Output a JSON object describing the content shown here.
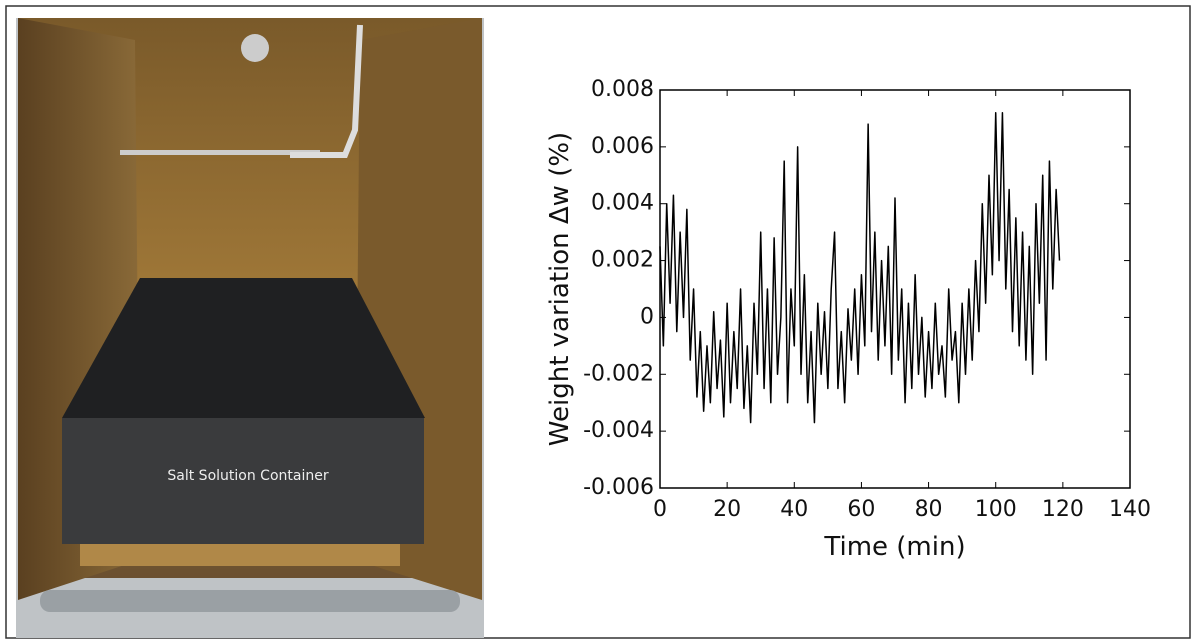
{
  "photo": {
    "caption": "Salt Solution Container"
  },
  "chart_data": {
    "type": "line",
    "xlabel": "Time (min)",
    "ylabel": "Weight variation Δw (%)",
    "xlim": [
      0,
      140
    ],
    "xticks": [
      0,
      20,
      40,
      60,
      80,
      100,
      120,
      140
    ],
    "ylim": [
      -0.006,
      0.008
    ],
    "yticks": [
      -0.006,
      -0.004,
      -0.002,
      0,
      0.002,
      0.004,
      0.006,
      0.008
    ],
    "x": [
      0,
      1,
      2,
      3,
      4,
      5,
      6,
      7,
      8,
      9,
      10,
      11,
      12,
      13,
      14,
      15,
      16,
      17,
      18,
      19,
      20,
      21,
      22,
      23,
      24,
      25,
      26,
      27,
      28,
      29,
      30,
      31,
      32,
      33,
      34,
      35,
      36,
      37,
      38,
      39,
      40,
      41,
      42,
      43,
      44,
      45,
      46,
      47,
      48,
      49,
      50,
      51,
      52,
      53,
      54,
      55,
      56,
      57,
      58,
      59,
      60,
      61,
      62,
      63,
      64,
      65,
      66,
      67,
      68,
      69,
      70,
      71,
      72,
      73,
      74,
      75,
      76,
      77,
      78,
      79,
      80,
      81,
      82,
      83,
      84,
      85,
      86,
      87,
      88,
      89,
      90,
      91,
      92,
      93,
      94,
      95,
      96,
      97,
      98,
      99,
      100,
      101,
      102,
      103,
      104,
      105,
      106,
      107,
      108,
      109,
      110,
      111,
      112,
      113,
      114,
      115,
      116,
      117,
      118,
      119
    ],
    "series": [
      {
        "color": "#000000",
        "values": [
          0.0025,
          -0.001,
          0.004,
          0.0005,
          0.0043,
          -0.0005,
          0.003,
          0,
          0.0038,
          -0.0015,
          0.001,
          -0.0028,
          -0.0005,
          -0.0033,
          -0.001,
          -0.003,
          0.0002,
          -0.0025,
          -0.0008,
          -0.0035,
          0.0005,
          -0.003,
          -0.0005,
          -0.0025,
          0.001,
          -0.0032,
          -0.001,
          -0.0037,
          0.0005,
          -0.002,
          0.003,
          -0.0025,
          0.001,
          -0.003,
          0.0028,
          -0.002,
          0,
          0.0055,
          -0.003,
          0.001,
          -0.001,
          0.006,
          -0.002,
          0.0015,
          -0.003,
          -0.0005,
          -0.0037,
          0.0005,
          -0.002,
          0.0002,
          -0.0025,
          0.001,
          0.003,
          -0.0025,
          -0.0005,
          -0.003,
          0.0003,
          -0.0015,
          0.001,
          -0.002,
          0.0015,
          -0.001,
          0.0068,
          -0.0005,
          0.003,
          -0.0015,
          0.002,
          -0.001,
          0.0025,
          -0.002,
          0.0042,
          -0.0015,
          0.001,
          -0.003,
          0.0005,
          -0.0025,
          0.0015,
          -0.002,
          0,
          -0.0028,
          -0.0005,
          -0.0025,
          0.0005,
          -0.002,
          -0.001,
          -0.0028,
          0.001,
          -0.0015,
          -0.0005,
          -0.003,
          0.0005,
          -0.002,
          0.001,
          -0.0015,
          0.002,
          -0.0005,
          0.004,
          0.0005,
          0.005,
          0.0015,
          0.0072,
          0.002,
          0.0072,
          0.001,
          0.0045,
          -0.0005,
          0.0035,
          -0.001,
          0.003,
          -0.0015,
          0.0025,
          -0.002,
          0.004,
          0.0005,
          0.005,
          -0.0015,
          0.0055,
          0.001,
          0.0045,
          0.002
        ]
      }
    ]
  }
}
